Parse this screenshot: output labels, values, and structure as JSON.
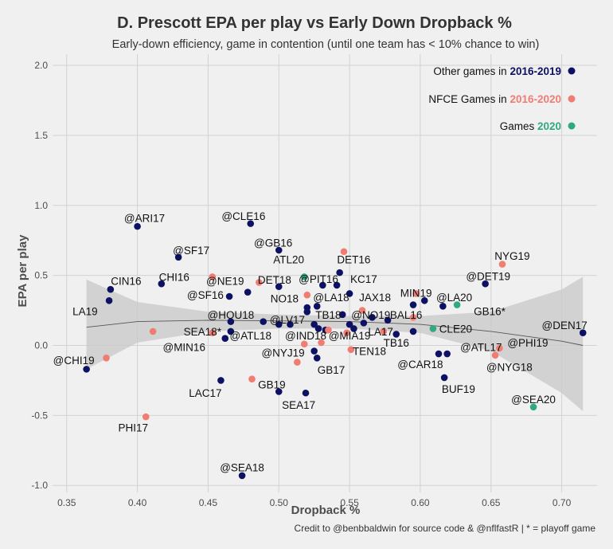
{
  "chart_data": {
    "type": "scatter",
    "title": "D. Prescott EPA per play vs Early Down Dropback %",
    "subtitle": "Early-down efficiency, game in contention (until one team has < 10% chance to win)",
    "xlabel": "Dropback %",
    "ylabel": "EPA per play",
    "caption": "Credit to @benbbaldwin for source code & @nflfastR | * = playoff game",
    "xlim": [
      0.34,
      0.725
    ],
    "ylim": [
      -1.05,
      2.08
    ],
    "x_ticks": [
      "0.35",
      "0.40",
      "0.45",
      "0.50",
      "0.55",
      "0.60",
      "0.65",
      "0.70"
    ],
    "y_ticks": [
      "2.0",
      "1.5",
      "1.0",
      "0.5",
      "0.0",
      "-0.5",
      "-1.0"
    ],
    "grid": true,
    "legend_position": "top-right",
    "colors": {
      "other": "#0c1163",
      "nfce": "#f07c72",
      "games2020": "#2eaa7d",
      "smooth_line": "#555555",
      "ribbon": "#c8c8c8"
    },
    "legend": [
      {
        "text_prefix": "Other games in ",
        "highlight": "2016-2019",
        "group": "other"
      },
      {
        "text_prefix": "NFCE Games in ",
        "highlight": "2016-2020",
        "group": "nfce"
      },
      {
        "text_prefix": "Games ",
        "highlight": "2020",
        "group": "games2020"
      }
    ],
    "smooth": {
      "x": [
        0.364,
        0.4,
        0.45,
        0.5,
        0.55,
        0.6,
        0.65,
        0.7,
        0.715
      ],
      "y": [
        0.13,
        0.17,
        0.18,
        0.175,
        0.17,
        0.15,
        0.1,
        0.03,
        0.0
      ],
      "lower": [
        -0.17,
        0.02,
        0.1,
        0.12,
        0.12,
        0.09,
        -0.04,
        -0.34,
        -0.47
      ],
      "upper": [
        0.47,
        0.31,
        0.24,
        0.22,
        0.21,
        0.21,
        0.24,
        0.4,
        0.49
      ]
    },
    "points": [
      {
        "x": 0.364,
        "y": -0.17,
        "group": "other",
        "label": "@CHI19",
        "lx": 0.355,
        "ly": -0.105
      },
      {
        "x": 0.38,
        "y": 0.32,
        "group": "other",
        "label": "LA19",
        "lx": 0.363,
        "ly": 0.245
      },
      {
        "x": 0.381,
        "y": 0.4,
        "group": "other",
        "label": "CIN16",
        "lx": 0.392,
        "ly": 0.46
      },
      {
        "x": 0.4,
        "y": 0.85,
        "group": "other",
        "label": "@ARI17",
        "lx": 0.405,
        "ly": 0.91
      },
      {
        "x": 0.417,
        "y": 0.44,
        "group": "other",
        "label": "CHI16",
        "lx": 0.426,
        "ly": 0.49
      },
      {
        "x": 0.429,
        "y": 0.63,
        "group": "other",
        "label": "@SF17",
        "lx": 0.438,
        "ly": 0.68
      },
      {
        "x": 0.459,
        "y": -0.25,
        "group": "other",
        "label": "LAC17",
        "lx": 0.448,
        "ly": -0.34
      },
      {
        "x": 0.462,
        "y": 0.05,
        "group": "other",
        "label": "",
        "lx": null,
        "ly": null
      },
      {
        "x": 0.465,
        "y": 0.35,
        "group": "other",
        "label": "@SF16",
        "lx": 0.448,
        "ly": 0.36
      },
      {
        "x": 0.466,
        "y": 0.17,
        "group": "other",
        "label": "@HOU18",
        "lx": 0.466,
        "ly": 0.22
      },
      {
        "x": 0.466,
        "y": 0.1,
        "group": "other",
        "label": "@ATL18",
        "lx": 0.48,
        "ly": 0.07
      },
      {
        "x": 0.474,
        "y": -0.93,
        "group": "other",
        "label": "@SEA18",
        "lx": 0.474,
        "ly": -0.87
      },
      {
        "x": 0.478,
        "y": 0.38,
        "group": "other",
        "label": "@NE19",
        "lx": 0.462,
        "ly": 0.46
      },
      {
        "x": 0.48,
        "y": 0.87,
        "group": "other",
        "label": "@CLE16",
        "lx": 0.475,
        "ly": 0.925
      },
      {
        "x": 0.489,
        "y": 0.17,
        "group": "other",
        "label": "",
        "lx": null,
        "ly": null
      },
      {
        "x": 0.5,
        "y": -0.33,
        "group": "other",
        "label": "",
        "lx": null,
        "ly": null
      },
      {
        "x": 0.5,
        "y": 0.68,
        "group": "other",
        "label": "@GB16",
        "lx": 0.496,
        "ly": 0.735
      },
      {
        "x": 0.5,
        "y": 0.42,
        "group": "other",
        "label": "DET18",
        "lx": 0.497,
        "ly": 0.47
      },
      {
        "x": 0.5,
        "y": 0.15,
        "group": "other",
        "label": "",
        "lx": null,
        "ly": null
      },
      {
        "x": 0.508,
        "y": 0.15,
        "group": "other",
        "label": "@LV17",
        "lx": 0.506,
        "ly": 0.185
      },
      {
        "x": 0.518,
        "y": 0.49,
        "group": "games2020",
        "label": "",
        "lx": null,
        "ly": null
      },
      {
        "x": 0.519,
        "y": -0.34,
        "group": "other",
        "label": "SEA17",
        "lx": 0.514,
        "ly": -0.425
      },
      {
        "x": 0.52,
        "y": 0.27,
        "group": "other",
        "label": "",
        "lx": null,
        "ly": null
      },
      {
        "x": 0.52,
        "y": 0.24,
        "group": "other",
        "label": "",
        "lx": null,
        "ly": null
      },
      {
        "x": 0.525,
        "y": 0.15,
        "group": "other",
        "label": "",
        "lx": null,
        "ly": null
      },
      {
        "x": 0.525,
        "y": -0.04,
        "group": "other",
        "label": "",
        "lx": null,
        "ly": null
      },
      {
        "x": 0.527,
        "y": -0.09,
        "group": "other",
        "label": "GB17",
        "lx": 0.537,
        "ly": -0.175
      },
      {
        "x": 0.527,
        "y": 0.28,
        "group": "other",
        "label": "@LA18",
        "lx": 0.537,
        "ly": 0.345
      },
      {
        "x": 0.528,
        "y": 0.12,
        "group": "other",
        "label": "@IND18",
        "lx": 0.519,
        "ly": 0.07
      },
      {
        "x": 0.531,
        "y": 0.43,
        "group": "other",
        "label": "@PIT16",
        "lx": 0.528,
        "ly": 0.475
      },
      {
        "x": 0.533,
        "y": 0.11,
        "group": "other",
        "label": "",
        "lx": null,
        "ly": null
      },
      {
        "x": 0.541,
        "y": 0.43,
        "group": "other",
        "label": "",
        "lx": null,
        "ly": null
      },
      {
        "x": 0.543,
        "y": 0.52,
        "group": "other",
        "label": "DET16",
        "lx": 0.553,
        "ly": 0.615
      },
      {
        "x": 0.545,
        "y": 0.22,
        "group": "other",
        "label": "",
        "lx": null,
        "ly": null
      },
      {
        "x": 0.55,
        "y": 0.37,
        "group": "other",
        "label": "",
        "lx": null,
        "ly": null
      },
      {
        "x": 0.55,
        "y": 0.15,
        "group": "other",
        "label": "",
        "lx": null,
        "ly": null
      },
      {
        "x": 0.553,
        "y": 0.12,
        "group": "other",
        "label": "",
        "lx": null,
        "ly": null
      },
      {
        "x": 0.56,
        "y": 0.16,
        "group": "other",
        "label": "",
        "lx": null,
        "ly": null
      },
      {
        "x": 0.566,
        "y": 0.2,
        "group": "other",
        "label": "",
        "lx": null,
        "ly": null
      },
      {
        "x": 0.577,
        "y": 0.18,
        "group": "other",
        "label": "",
        "lx": null,
        "ly": null
      },
      {
        "x": 0.583,
        "y": 0.08,
        "group": "other",
        "label": "",
        "lx": null,
        "ly": null
      },
      {
        "x": 0.595,
        "y": 0.1,
        "group": "other",
        "label": "TB16",
        "lx": 0.583,
        "ly": 0.02
      },
      {
        "x": 0.595,
        "y": 0.29,
        "group": "other",
        "label": "",
        "lx": null,
        "ly": null
      },
      {
        "x": 0.603,
        "y": 0.32,
        "group": "other",
        "label": "",
        "lx": null,
        "ly": null
      },
      {
        "x": 0.613,
        "y": -0.06,
        "group": "other",
        "label": "",
        "lx": null,
        "ly": null
      },
      {
        "x": 0.617,
        "y": -0.23,
        "group": "other",
        "label": "BUF19",
        "lx": 0.627,
        "ly": -0.31
      },
      {
        "x": 0.619,
        "y": -0.06,
        "group": "other",
        "label": "@CAR18",
        "lx": 0.6,
        "ly": -0.135
      },
      {
        "x": 0.616,
        "y": 0.28,
        "group": "other",
        "label": "@LA20",
        "lx": 0.624,
        "ly": 0.345
      },
      {
        "x": 0.646,
        "y": 0.44,
        "group": "other",
        "label": "@DET19",
        "lx": 0.648,
        "ly": 0.495
      },
      {
        "x": 0.715,
        "y": 0.09,
        "group": "other",
        "label": "@DEN17",
        "lx": 0.702,
        "ly": 0.145
      },
      {
        "x": 0.378,
        "y": -0.09,
        "group": "nfce",
        "label": "",
        "lx": null,
        "ly": null
      },
      {
        "x": 0.406,
        "y": -0.51,
        "group": "nfce",
        "label": "PHI17",
        "lx": 0.397,
        "ly": -0.585
      },
      {
        "x": 0.411,
        "y": 0.1,
        "group": "nfce",
        "label": "",
        "lx": null,
        "ly": null
      },
      {
        "x": 0.453,
        "y": 0.09,
        "group": "nfce",
        "label": "SEA18*",
        "lx": 0.446,
        "ly": 0.1
      },
      {
        "x": 0.453,
        "y": 0.49,
        "group": "nfce",
        "label": "",
        "lx": null,
        "ly": null
      },
      {
        "x": 0.481,
        "y": -0.24,
        "group": "nfce",
        "label": "GB19",
        "lx": 0.495,
        "ly": -0.28
      },
      {
        "x": 0.486,
        "y": 0.45,
        "group": "nfce",
        "label": "",
        "lx": null,
        "ly": null
      },
      {
        "x": 0.513,
        "y": -0.12,
        "group": "nfce",
        "label": "",
        "lx": null,
        "ly": null
      },
      {
        "x": 0.518,
        "y": 0.01,
        "group": "nfce",
        "label": "",
        "lx": null,
        "ly": null
      },
      {
        "x": 0.52,
        "y": 0.36,
        "group": "nfce",
        "label": "NO18",
        "lx": 0.504,
        "ly": 0.335
      },
      {
        "x": 0.53,
        "y": 0.02,
        "group": "nfce",
        "label": "",
        "lx": null,
        "ly": null
      },
      {
        "x": 0.535,
        "y": 0.11,
        "group": "nfce",
        "label": "",
        "lx": null,
        "ly": null
      },
      {
        "x": 0.546,
        "y": 0.67,
        "group": "nfce",
        "label": "",
        "lx": null,
        "ly": null
      },
      {
        "x": 0.548,
        "y": 0.09,
        "group": "nfce",
        "label": "@MIA19",
        "lx": 0.55,
        "ly": 0.07
      },
      {
        "x": 0.551,
        "y": -0.03,
        "group": "nfce",
        "label": "TEN18",
        "lx": 0.564,
        "ly": -0.04
      },
      {
        "x": 0.559,
        "y": 0.25,
        "group": "nfce",
        "label": "",
        "lx": null,
        "ly": null
      },
      {
        "x": 0.574,
        "y": 0.1,
        "group": "nfce",
        "label": "",
        "lx": null,
        "ly": null
      },
      {
        "x": 0.595,
        "y": 0.2,
        "group": "nfce",
        "label": "",
        "lx": null,
        "ly": null
      },
      {
        "x": 0.597,
        "y": 0.37,
        "group": "nfce",
        "label": "",
        "lx": null,
        "ly": null
      },
      {
        "x": 0.653,
        "y": -0.07,
        "group": "nfce",
        "label": "@NYG18",
        "lx": 0.663,
        "ly": -0.155
      },
      {
        "x": 0.656,
        "y": -0.02,
        "group": "nfce",
        "label": "",
        "lx": null,
        "ly": null
      },
      {
        "x": 0.658,
        "y": 0.58,
        "group": "nfce",
        "label": "NYG19",
        "lx": 0.665,
        "ly": 0.64
      },
      {
        "x": 0.609,
        "y": 0.12,
        "group": "games2020",
        "label": "CLE20",
        "lx": 0.625,
        "ly": 0.12
      },
      {
        "x": 0.626,
        "y": 0.29,
        "group": "games2020",
        "label": "",
        "lx": null,
        "ly": null
      },
      {
        "x": 0.68,
        "y": -0.44,
        "group": "games2020",
        "label": "@SEA20",
        "lx": 0.68,
        "ly": -0.385
      }
    ],
    "extra_labels": [
      {
        "label": "ATL20",
        "lx": 0.507,
        "ly": 0.615
      },
      {
        "label": "KC17",
        "lx": 0.56,
        "ly": 0.475
      },
      {
        "label": "JAX18",
        "lx": 0.568,
        "ly": 0.345
      },
      {
        "label": "TB18",
        "lx": 0.535,
        "ly": 0.22
      },
      {
        "label": "@NO19",
        "lx": 0.565,
        "ly": 0.22
      },
      {
        "label": "BAL16",
        "lx": 0.59,
        "ly": 0.22
      },
      {
        "label": "LA17",
        "lx": 0.572,
        "ly": 0.1
      },
      {
        "label": "MIN19",
        "lx": 0.597,
        "ly": 0.375
      },
      {
        "label": "GB16*",
        "lx": 0.649,
        "ly": 0.245
      },
      {
        "label": "@ATL17",
        "lx": 0.643,
        "ly": -0.01
      },
      {
        "label": "@PHI19",
        "lx": 0.676,
        "ly": 0.02
      },
      {
        "label": "@MIN16",
        "lx": 0.433,
        "ly": -0.01
      },
      {
        "label": "@NYJ19",
        "lx": 0.503,
        "ly": -0.05
      }
    ]
  }
}
